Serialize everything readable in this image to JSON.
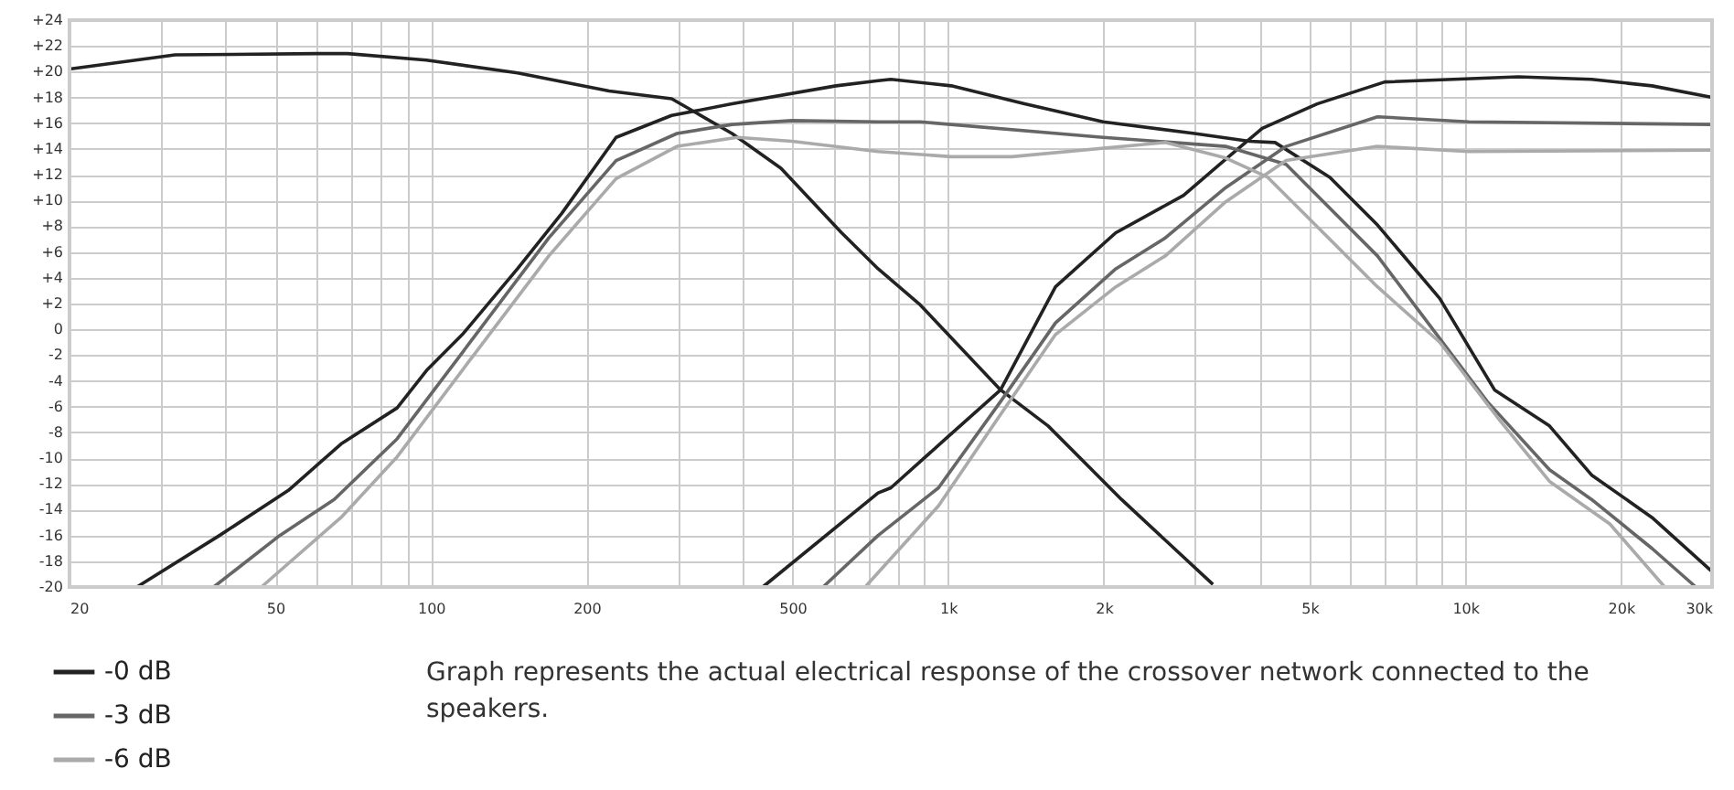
{
  "chart_data": {
    "type": "line",
    "annotations": [
      "Graph represents the actual electrical response of the crossover network connected to the speakers."
    ],
    "log": "x",
    "grid": true,
    "legend": "bottom left",
    "line_style": "solid",
    "marker": "none",
    "xlim": [
      20,
      30000
    ],
    "xticks": [
      20,
      {
        "value": 30,
        "label": null
      },
      {
        "value": 40,
        "label": null
      },
      50,
      {
        "value": 60,
        "label": null
      },
      {
        "value": 70,
        "label": null
      },
      {
        "value": 80,
        "label": null
      },
      {
        "value": 90,
        "label": null
      },
      100,
      200,
      {
        "value": 300,
        "label": null
      },
      {
        "value": 400,
        "label": null
      },
      500,
      {
        "value": 600,
        "label": null
      },
      {
        "value": 700,
        "label": null
      },
      {
        "value": 800,
        "label": null
      },
      {
        "value": 900,
        "label": null
      },
      {
        "value": 1000,
        "label": "1k"
      },
      {
        "value": 2000,
        "label": "2k"
      },
      {
        "value": 3000,
        "label": null
      },
      {
        "value": 4000,
        "label": null
      },
      {
        "value": 5000,
        "label": "5k"
      },
      {
        "value": 6000,
        "label": null
      },
      {
        "value": 7000,
        "label": null
      },
      {
        "value": 8000,
        "label": null
      },
      {
        "value": 9000,
        "label": null
      },
      {
        "value": 10000,
        "label": "10k"
      },
      {
        "value": 20000,
        "label": "20k"
      },
      {
        "value": 30000,
        "label": "30k"
      }
    ],
    "ylim": [
      -20,
      24
    ],
    "yticks": [
      {
        "value": 24,
        "label": "+24"
      },
      {
        "value": 22,
        "label": "+22"
      },
      {
        "value": 20,
        "label": "+20"
      },
      {
        "value": 18,
        "label": "+18"
      },
      {
        "value": 16,
        "label": "+16"
      },
      {
        "value": 14,
        "label": "+14"
      },
      {
        "value": 12,
        "label": "+12"
      },
      {
        "value": 10,
        "label": "+10"
      },
      {
        "value": 8,
        "label": "+8"
      },
      {
        "value": 6,
        "label": "+6"
      },
      {
        "value": 4,
        "label": "+4"
      },
      {
        "value": 2,
        "label": "+2"
      },
      {
        "value": 0,
        "label": "0"
      },
      {
        "value": -2,
        "label": "-2"
      },
      {
        "value": -4,
        "label": "-4"
      },
      {
        "value": -6,
        "label": "-6"
      },
      {
        "value": -8,
        "label": "-8"
      },
      {
        "value": -10,
        "label": "-10"
      },
      {
        "value": -12,
        "label": "-12"
      },
      {
        "value": -14,
        "label": "-14"
      },
      {
        "value": -16,
        "label": "-16"
      },
      {
        "value": -18,
        "label": "-18"
      },
      {
        "value": -20,
        "label": "-20"
      }
    ],
    "series": [
      {
        "name": "-0 dB",
        "color": "#222222",
        "x": [
          20,
          32,
          60,
          69,
          98,
          147,
          221,
          292,
          382,
          475,
          622,
          732,
          883,
          1263,
          1561,
          2163,
          3251
        ],
        "values": [
          20.2,
          21.3,
          21.4,
          21.4,
          20.9,
          19.9,
          18.5,
          17.9,
          15.2,
          12.5,
          7.5,
          4.7,
          1.9,
          -4.7,
          -7.5,
          -13.2,
          -19.8
        ]
      },
      {
        "color": "#222222",
        "x": [
          27,
          39,
          53,
          67,
          86,
          98,
          115,
          147,
          179,
          228,
          292,
          382,
          607,
          732,
          775,
          1014,
          1405,
          1994,
          2996,
          3825,
          4288,
          5472,
          6763,
          8923,
          11391,
          14549,
          17540,
          22956,
          30000
        ],
        "values": [
          -20,
          -16,
          -12.5,
          -8.9,
          -6.1,
          -3.2,
          -0.4,
          4.7,
          9,
          14.9,
          16.6,
          17.5,
          18.9,
          19.3,
          19.4,
          18.9,
          17.5,
          16.1,
          15.2,
          14.6,
          14.5,
          11.8,
          8.1,
          2.4,
          -4.7,
          -7.5,
          -11.3,
          -14.6,
          -18.8
        ]
      },
      {
        "color": "#222222",
        "x": [
          438,
          732,
          775,
          989,
          1263,
          1613,
          2110,
          2853,
          3441,
          4049,
          5171,
          6987,
          12667,
          17540,
          22956,
          30000
        ],
        "values": [
          -20,
          -12.7,
          -12.3,
          -8.5,
          -4.7,
          3.3,
          7.5,
          10.4,
          13.2,
          15.6,
          17.5,
          19.2,
          19.6,
          19.4,
          18.9,
          18
        ]
      },
      {
        "name": "-3 dB",
        "color": "#666666",
        "x": [
          38,
          51,
          65,
          86,
          115,
          169,
          228,
          299,
          382,
          499,
          732,
          883,
          1994,
          3441,
          4503,
          6763,
          11026,
          14549,
          17540,
          22956,
          27908
        ],
        "values": [
          -20,
          -16,
          -13.2,
          -8.5,
          -1.8,
          7.1,
          13.1,
          15.2,
          15.9,
          16.2,
          16.1,
          16.1,
          14.9,
          14.2,
          12.8,
          5.7,
          -5.6,
          -10.9,
          -13.2,
          -17,
          -20
        ]
      },
      {
        "color": "#666666",
        "x": [
          573,
          732,
          958,
          1263,
          1613,
          2110,
          2630,
          3441,
          4503,
          6763,
          10164,
          30000
        ],
        "values": [
          -20,
          -16,
          -12.3,
          -5.6,
          0.5,
          4.7,
          7.1,
          11,
          14.2,
          16.5,
          16.1,
          15.9
        ]
      },
      {
        "name": "-6 dB",
        "color": "#aaaaaa",
        "x": [
          47,
          67,
          86,
          122,
          169,
          228,
          299,
          391,
          499,
          732,
          1014,
          1327,
          2630,
          3441,
          4150,
          6763,
          8923,
          11675,
          14549,
          19030,
          24298
        ],
        "values": [
          -20,
          -14.6,
          -9.9,
          -1.8,
          5.7,
          11.7,
          14.2,
          14.9,
          14.6,
          13.8,
          13.4,
          13.4,
          14.5,
          13.3,
          11.8,
          3.3,
          -1,
          -7.1,
          -11.8,
          -15.1,
          -20
        ]
      },
      {
        "color": "#aaaaaa",
        "x": [
          691,
          958,
          1263,
          1613,
          2110,
          2630,
          3441,
          4503,
          6763,
          10164,
          30000
        ],
        "values": [
          -20,
          -13.7,
          -6.6,
          -0.4,
          3.3,
          5.7,
          9.9,
          13.1,
          14.2,
          13.8,
          13.9
        ]
      }
    ]
  }
}
